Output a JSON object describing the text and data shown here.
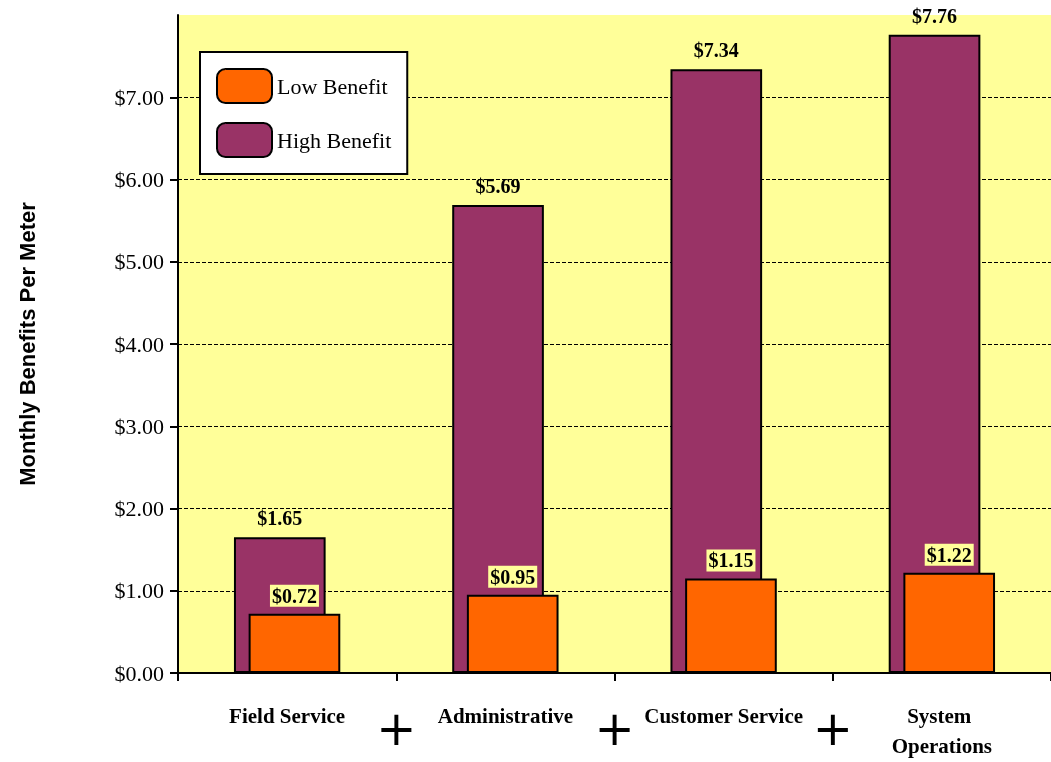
{
  "chart_data": {
    "type": "bar",
    "ylabel": "Monthly Benefits Per Meter",
    "categories": [
      "Field Service",
      "Administrative",
      "Customer Service",
      "System Operations"
    ],
    "series": [
      {
        "name": "High Benefit",
        "color": "#993366",
        "values": [
          1.65,
          5.69,
          7.34,
          7.76
        ],
        "value_labels": [
          "$1.65",
          "$5.69",
          "$7.34",
          "$7.76"
        ]
      },
      {
        "name": "Low Benefit",
        "color": "#ff6600",
        "values": [
          0.72,
          0.95,
          1.15,
          1.22
        ],
        "value_labels": [
          "$0.72",
          "$0.95",
          "$1.15",
          "$1.22"
        ]
      }
    ],
    "ylim": [
      0,
      8
    ],
    "yticks": [
      {
        "value": 0,
        "label": "$0.00"
      },
      {
        "value": 1,
        "label": "$1.00"
      },
      {
        "value": 2,
        "label": "$2.00"
      },
      {
        "value": 3,
        "label": "$3.00"
      },
      {
        "value": 4,
        "label": "$4.00"
      },
      {
        "value": 5,
        "label": "$5.00"
      },
      {
        "value": 6,
        "label": "$6.00"
      },
      {
        "value": 7,
        "label": "$7.00"
      }
    ],
    "grid": "y",
    "legend": "top left",
    "annotations": [
      "+",
      "+",
      "+"
    ]
  }
}
